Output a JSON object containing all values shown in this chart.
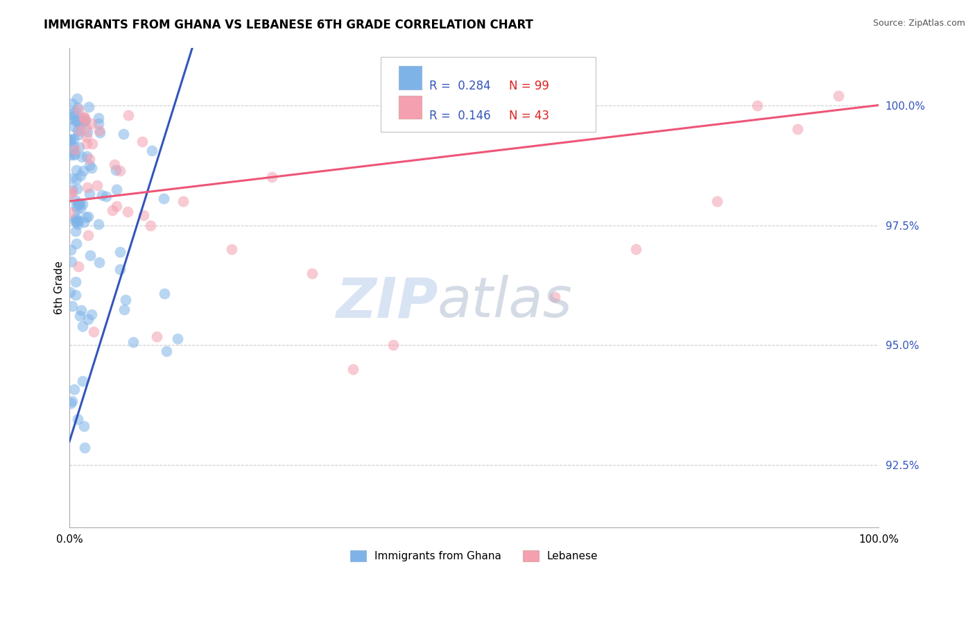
{
  "title": "IMMIGRANTS FROM GHANA VS LEBANESE 6TH GRADE CORRELATION CHART",
  "source": "Source: ZipAtlas.com",
  "ylabel": "6th Grade",
  "legend_label1": "Immigrants from Ghana",
  "legend_label2": "Lebanese",
  "R1": 0.284,
  "N1": 99,
  "R2": 0.146,
  "N2": 43,
  "color_blue": "#7EB3E8",
  "color_pink": "#F4A0B0",
  "trendline_blue": "#3355BB",
  "trendline_pink": "#EE5577",
  "xlim": [
    0.0,
    100.0
  ],
  "ylim": [
    91.2,
    101.2
  ],
  "yticks": [
    92.5,
    95.0,
    97.5,
    100.0
  ],
  "tick_color": "#3355BB"
}
